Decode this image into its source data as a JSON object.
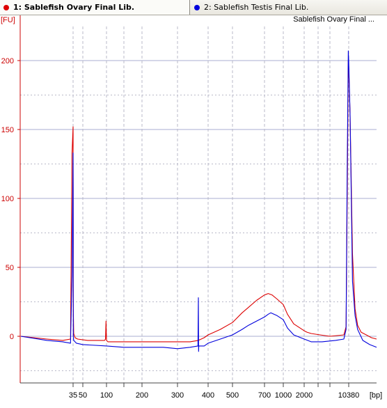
{
  "tabs": [
    {
      "label": "1: Sablefish Ovary Final Lib.",
      "dot_color": "#dd0000",
      "active": true
    },
    {
      "label": "2: Sablefish Testis Final Lib.",
      "dot_color": "#0000dd",
      "active": false
    }
  ],
  "sample_title": "Sablefish Ovary Final ...",
  "chart_data": {
    "type": "line",
    "ylabel": "[FU]",
    "xlabel": "[bp]",
    "ylim": [
      -35,
      230
    ],
    "y_ticks": [
      0,
      50,
      100,
      150,
      200
    ],
    "x_tick_labels": [
      "35",
      "50",
      "100",
      "200",
      "300",
      "400",
      "500",
      "700",
      "1000",
      "2000",
      "10380"
    ],
    "x_unlabeled_ticks": [
      150,
      4000,
      7000
    ],
    "series": [
      {
        "name": "1: Sablefish Ovary Final Lib.",
        "color": "#dd0000",
        "points": [
          [
            25,
            0
          ],
          [
            30,
            -2
          ],
          [
            33,
            -3
          ],
          [
            34.5,
            -2
          ],
          [
            34.8,
            133
          ],
          [
            35,
            152
          ],
          [
            35.3,
            20
          ],
          [
            36,
            2
          ],
          [
            38,
            -1
          ],
          [
            42,
            -2
          ],
          [
            60,
            -3
          ],
          [
            96,
            -3
          ],
          [
            98,
            -2
          ],
          [
            99,
            11
          ],
          [
            100,
            -3
          ],
          [
            104,
            -4
          ],
          [
            150,
            -4
          ],
          [
            200,
            -4
          ],
          [
            260,
            -4
          ],
          [
            300,
            -4
          ],
          [
            330,
            -4
          ],
          [
            350,
            -3
          ],
          [
            380,
            -1
          ],
          [
            400,
            1
          ],
          [
            450,
            5
          ],
          [
            500,
            10
          ],
          [
            560,
            17
          ],
          [
            600,
            21
          ],
          [
            650,
            26
          ],
          [
            700,
            30
          ],
          [
            760,
            31
          ],
          [
            820,
            30
          ],
          [
            900,
            27
          ],
          [
            1000,
            23
          ],
          [
            1200,
            16
          ],
          [
            1500,
            9
          ],
          [
            1800,
            6
          ],
          [
            2000,
            4
          ],
          [
            2400,
            3
          ],
          [
            3000,
            2
          ],
          [
            4500,
            1
          ],
          [
            7000,
            0
          ],
          [
            9500,
            1
          ],
          [
            9900,
            7
          ],
          [
            10150,
            120
          ],
          [
            10300,
            200
          ],
          [
            10380,
            196
          ],
          [
            10460,
            160
          ],
          [
            10600,
            60
          ],
          [
            10750,
            20
          ],
          [
            10900,
            8
          ],
          [
            11100,
            3
          ],
          [
            11400,
            1
          ],
          [
            11700,
            -1
          ],
          [
            12000,
            -2
          ]
        ]
      },
      {
        "name": "2: Sablefish Testis Final Lib.",
        "color": "#0000dd",
        "points": [
          [
            25,
            0
          ],
          [
            30,
            -3
          ],
          [
            33,
            -4
          ],
          [
            34.5,
            -5
          ],
          [
            34.8,
            44
          ],
          [
            35,
            133
          ],
          [
            35.3,
            0
          ],
          [
            36,
            -3
          ],
          [
            40,
            -5
          ],
          [
            50,
            -6
          ],
          [
            100,
            -7
          ],
          [
            150,
            -8
          ],
          [
            200,
            -8
          ],
          [
            260,
            -8
          ],
          [
            300,
            -9
          ],
          [
            330,
            -8
          ],
          [
            349,
            -7
          ],
          [
            350,
            28
          ],
          [
            351,
            -11
          ],
          [
            352,
            -7
          ],
          [
            380,
            -7
          ],
          [
            400,
            -5
          ],
          [
            450,
            -2
          ],
          [
            500,
            1
          ],
          [
            560,
            5
          ],
          [
            600,
            8
          ],
          [
            650,
            11
          ],
          [
            700,
            14
          ],
          [
            760,
            16
          ],
          [
            800,
            17
          ],
          [
            850,
            16
          ],
          [
            900,
            15
          ],
          [
            1000,
            12
          ],
          [
            1200,
            6
          ],
          [
            1500,
            1
          ],
          [
            2000,
            -2
          ],
          [
            2500,
            -3
          ],
          [
            3000,
            -4
          ],
          [
            5000,
            -4
          ],
          [
            8000,
            -3
          ],
          [
            9500,
            -2
          ],
          [
            9900,
            5
          ],
          [
            10100,
            120
          ],
          [
            10300,
            207
          ],
          [
            10380,
            200
          ],
          [
            10460,
            160
          ],
          [
            10600,
            40
          ],
          [
            10750,
            15
          ],
          [
            10900,
            5
          ],
          [
            11200,
            -3
          ],
          [
            11600,
            -6
          ],
          [
            12000,
            -8
          ]
        ]
      }
    ]
  }
}
